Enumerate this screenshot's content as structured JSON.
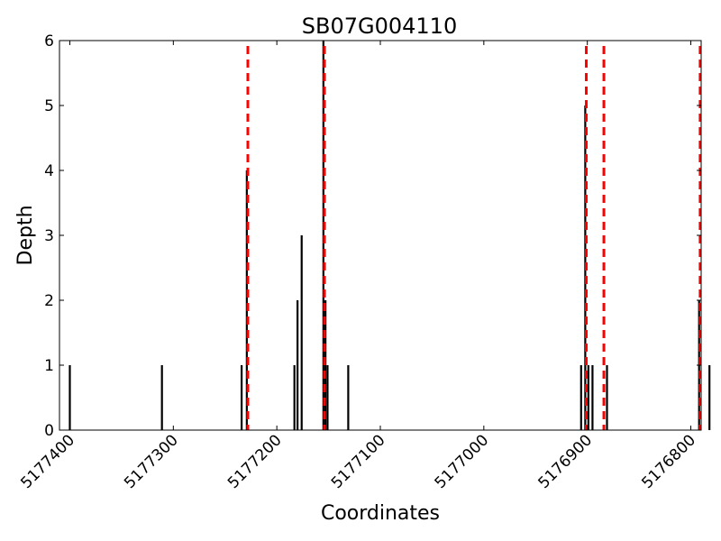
{
  "chart_data": {
    "type": "bar",
    "title": "SB07G004110",
    "xlabel": "Coordinates",
    "ylabel": "Depth",
    "xlim": [
      5177410,
      5176790
    ],
    "x_inverted": true,
    "ylim": [
      0,
      6
    ],
    "xticks": [
      5177400,
      5177300,
      5177200,
      5177100,
      5177000,
      5176900,
      5176800
    ],
    "yticks": [
      0,
      1,
      2,
      3,
      4,
      5,
      6
    ],
    "grid": false,
    "bar_color": "#000000",
    "vline_color": "#ff0000",
    "bars": [
      {
        "x": 5177400,
        "y": 1
      },
      {
        "x": 5177311,
        "y": 1
      },
      {
        "x": 5177234,
        "y": 1
      },
      {
        "x": 5177229,
        "y": 4
      },
      {
        "x": 5177183,
        "y": 1
      },
      {
        "x": 5177180,
        "y": 2
      },
      {
        "x": 5177176,
        "y": 3
      },
      {
        "x": 5177155,
        "y": 6
      },
      {
        "x": 5177153,
        "y": 2
      },
      {
        "x": 5177151,
        "y": 1
      },
      {
        "x": 5177131,
        "y": 1
      },
      {
        "x": 5176906,
        "y": 1
      },
      {
        "x": 5176902,
        "y": 5
      },
      {
        "x": 5176899,
        "y": 1
      },
      {
        "x": 5176895,
        "y": 1
      },
      {
        "x": 5176881,
        "y": 1
      },
      {
        "x": 5176792,
        "y": 2
      },
      {
        "x": 5176782,
        "y": 1
      },
      {
        "x": 5176769,
        "y": 1
      }
    ],
    "vlines": [
      5177228,
      5177154,
      5176901,
      5176884,
      5176791
    ]
  }
}
